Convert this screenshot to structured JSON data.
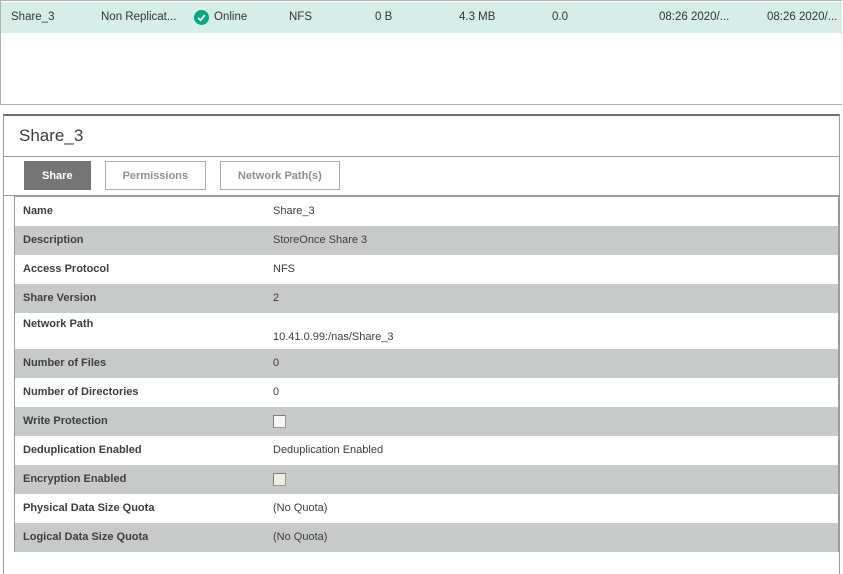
{
  "colors": {
    "selected_row": "#d7eee8",
    "status_green": "#01a982",
    "row_alt_gray": "#c7cac9",
    "active_tab_gray": "#757575"
  },
  "top_table": {
    "row": {
      "name": "Share_3",
      "replication": "Non Replicat...",
      "status": "Online",
      "protocol": "NFS",
      "user_data": "0 B",
      "size_on_disk": "4.3 MB",
      "dedupe_ratio": "0.0",
      "created": "08:26 2020/...",
      "last_modified": "08:26 2020/..."
    }
  },
  "detail": {
    "title": "Share_3",
    "tabs": [
      {
        "label": "Share",
        "active": true
      },
      {
        "label": "Permissions",
        "active": false
      },
      {
        "label": "Network Path(s)",
        "active": false
      }
    ],
    "rows": [
      {
        "label": "Name",
        "value": "Share_3"
      },
      {
        "label": "Description",
        "value": "StoreOnce Share 3"
      },
      {
        "label": "Access Protocol",
        "value": "NFS"
      },
      {
        "label": "Share Version",
        "value": "2"
      },
      {
        "label": "Network Path",
        "value": "10.41.0.99:/nas/Share_3",
        "tall": true
      },
      {
        "label": "Number of Files",
        "value": "0"
      },
      {
        "label": "Number of Directories",
        "value": "0"
      },
      {
        "label": "Write Protection",
        "checkbox": true,
        "checked": false,
        "checkbox_style": "plain"
      },
      {
        "label": "Deduplication Enabled",
        "value": "Deduplication Enabled"
      },
      {
        "label": "Encryption Enabled",
        "checkbox": true,
        "checked": false,
        "checkbox_style": "cream"
      },
      {
        "label": "Physical Data Size Quota",
        "value": "(No Quota)"
      },
      {
        "label": "Logical Data Size Quota",
        "value": "(No Quota)"
      }
    ]
  }
}
